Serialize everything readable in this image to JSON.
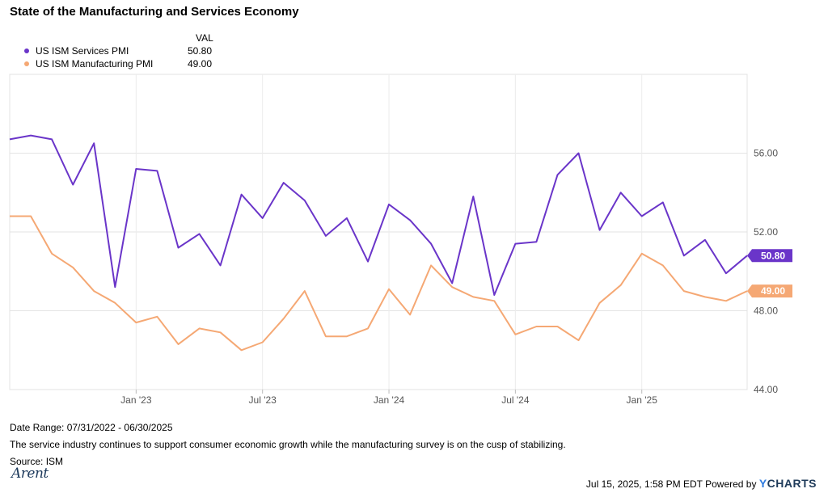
{
  "title": "State of the Manufacturing and Services Economy",
  "legend": {
    "value_header": "VAL",
    "items": [
      {
        "name": "US ISM Services PMI",
        "value": "50.80",
        "color": "#6a35c9"
      },
      {
        "name": "US ISM Manufacturing PMI",
        "value": "49.00",
        "color": "#f5a874"
      }
    ]
  },
  "footer": {
    "date_range": "Date Range: 07/31/2022 - 06/30/2025",
    "note": "The service industry continues to support consumer economic growth while the manufacturing survey is on the cusp of stabilizing.",
    "source": "Source: ISM",
    "logo_text": "Arent",
    "timestamp": "Jul 15, 2025, 1:58 PM EDT Powered by",
    "brand_y": "Y",
    "brand_rest": "CHARTS"
  },
  "chart_data": {
    "type": "line",
    "x": [
      "2022-07",
      "2022-08",
      "2022-09",
      "2022-10",
      "2022-11",
      "2022-12",
      "2023-01",
      "2023-02",
      "2023-03",
      "2023-04",
      "2023-05",
      "2023-06",
      "2023-07",
      "2023-08",
      "2023-09",
      "2023-10",
      "2023-11",
      "2023-12",
      "2024-01",
      "2024-02",
      "2024-03",
      "2024-04",
      "2024-05",
      "2024-06",
      "2024-07",
      "2024-08",
      "2024-09",
      "2024-10",
      "2024-11",
      "2024-12",
      "2025-01",
      "2025-02",
      "2025-03",
      "2025-04",
      "2025-05",
      "2025-06"
    ],
    "x_tick_labels": [
      "Jan '23",
      "Jul '23",
      "Jan '24",
      "Jul '24",
      "Jan '25"
    ],
    "series": [
      {
        "name": "US ISM Services PMI",
        "color": "#6a35c9",
        "values": [
          56.7,
          56.9,
          56.7,
          54.4,
          56.5,
          49.2,
          55.2,
          55.1,
          51.2,
          51.9,
          50.3,
          53.9,
          52.7,
          54.5,
          53.6,
          51.8,
          52.7,
          50.5,
          53.4,
          52.6,
          51.4,
          49.4,
          53.8,
          48.8,
          51.4,
          51.5,
          54.9,
          56.0,
          52.1,
          54.0,
          52.8,
          53.5,
          50.8,
          51.6,
          49.9,
          50.8
        ],
        "last_label": "50.80"
      },
      {
        "name": "US ISM Manufacturing PMI",
        "color": "#f5a874",
        "values": [
          52.8,
          52.8,
          50.9,
          50.2,
          49.0,
          48.4,
          47.4,
          47.7,
          46.3,
          47.1,
          46.9,
          46.0,
          46.4,
          47.6,
          49.0,
          46.7,
          46.7,
          47.1,
          49.1,
          47.8,
          50.3,
          49.2,
          48.7,
          48.5,
          46.8,
          47.2,
          47.2,
          46.5,
          48.4,
          49.3,
          50.9,
          50.3,
          49.0,
          48.7,
          48.5,
          49.0
        ],
        "last_label": "49.00"
      }
    ],
    "y_ticks": [
      "44.00",
      "48.00",
      "52.00",
      "56.00"
    ],
    "ylim": [
      44,
      60
    ],
    "y_axis_side": "right",
    "grid": true,
    "legend_position": "top-left"
  }
}
